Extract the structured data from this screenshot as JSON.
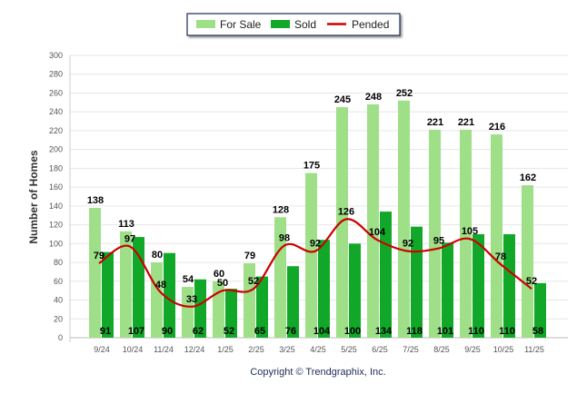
{
  "chart_data": {
    "type": "bar",
    "title": "",
    "xlabel": "",
    "ylabel": "Number of Homes",
    "ylim": [
      0,
      300
    ],
    "yticks": [
      0,
      20,
      40,
      60,
      80,
      100,
      120,
      140,
      160,
      180,
      200,
      220,
      240,
      260,
      280,
      300
    ],
    "grid": true,
    "legend_position": "top-center",
    "categories": [
      "9/24",
      "10/24",
      "11/24",
      "12/24",
      "1/25",
      "2/25",
      "3/25",
      "4/25",
      "5/25",
      "6/25",
      "7/25",
      "8/25",
      "9/25",
      "10/25",
      "11/25"
    ],
    "series": [
      {
        "name": "For Sale",
        "kind": "bar",
        "color": "#9edf88",
        "values": [
          138,
          113,
          80,
          54,
          60,
          79,
          128,
          175,
          245,
          248,
          252,
          221,
          221,
          216,
          162
        ]
      },
      {
        "name": "Sold",
        "kind": "bar",
        "color": "#11a829",
        "values": [
          91,
          107,
          90,
          62,
          52,
          65,
          76,
          104,
          100,
          134,
          118,
          101,
          110,
          110,
          58
        ]
      },
      {
        "name": "Pended",
        "kind": "line",
        "color": "#cc0000",
        "values": [
          79,
          97,
          48,
          33,
          50,
          52,
          98,
          92,
          126,
          104,
          92,
          95,
          105,
          78,
          52
        ]
      }
    ]
  },
  "footer": {
    "copyright": "Copyright © Trendgraphix, Inc."
  }
}
